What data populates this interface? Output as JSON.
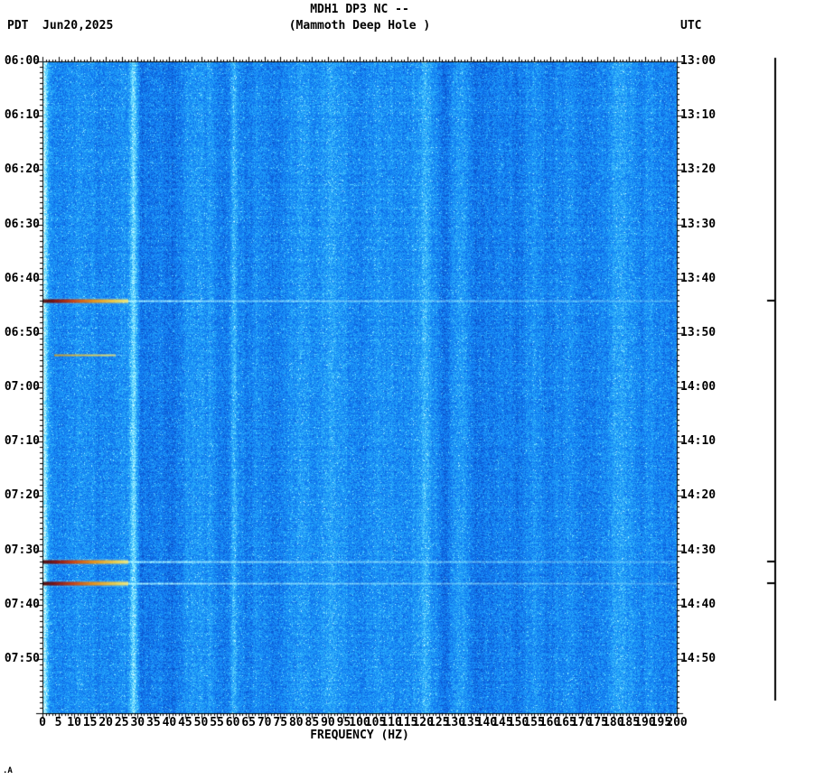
{
  "header": {
    "tz_left": "PDT",
    "date": "Jun20,2025",
    "title_line1": "MDH1 DP3 NC --",
    "title_line2": "(Mammoth Deep Hole )",
    "tz_right": "UTC"
  },
  "axes": {
    "xlabel": "FREQUENCY (HZ)",
    "left_time_labels": [
      "06:00",
      "06:10",
      "06:20",
      "06:30",
      "06:40",
      "06:50",
      "07:00",
      "07:10",
      "07:20",
      "07:30",
      "07:40",
      "07:50"
    ],
    "right_time_labels": [
      "13:00",
      "13:10",
      "13:20",
      "13:30",
      "13:40",
      "13:50",
      "14:00",
      "14:10",
      "14:20",
      "14:30",
      "14:40",
      "14:50"
    ],
    "freq_labels": [
      "0",
      "5",
      "10",
      "15",
      "20",
      "25",
      "30",
      "35",
      "40",
      "45",
      "50",
      "55",
      "60",
      "65",
      "70",
      "75",
      "80",
      "85",
      "90",
      "95",
      "100",
      "105",
      "110",
      "115",
      "120",
      "125",
      "130",
      "135",
      "140",
      "145",
      "150",
      "155",
      "160",
      "165",
      "170",
      "175",
      "180",
      "185",
      "190",
      "195",
      "200"
    ]
  },
  "footer_mark": ".A",
  "chart_data": {
    "type": "heatmap",
    "title": "MDH1 DP3 NC -- (Mammoth Deep Hole )",
    "station": "MDH1 DP3 NC",
    "station_name": "Mammoth Deep Hole",
    "date": "Jun20,2025",
    "xlabel": "FREQUENCY (HZ)",
    "x_range_hz": [
      0,
      200
    ],
    "x_tick_step_hz": 5,
    "y_axis_left": {
      "timezone": "PDT",
      "start": "06:00",
      "end": "08:00",
      "tick_step_min": 10
    },
    "y_axis_right": {
      "timezone": "UTC",
      "start": "13:00",
      "end": "15:00",
      "tick_step_min": 10
    },
    "background_character": "broadband blue speckle noise",
    "persistent_spectral_lines_hz": [
      28.6,
      60.3,
      120.3,
      179.8
    ],
    "events": [
      {
        "time_pdt": "06:44",
        "time_utc": "13:44",
        "type": "strong",
        "low_freq_peak_hz": [
          0,
          27
        ],
        "streak_extent_hz": [
          0,
          200
        ]
      },
      {
        "time_pdt": "06:54",
        "time_utc": "13:54",
        "type": "weak",
        "low_freq_peak_hz": [
          4,
          23
        ],
        "streak_extent_hz": [
          4,
          32
        ]
      },
      {
        "time_pdt": "07:32",
        "time_utc": "14:32",
        "type": "strong",
        "low_freq_peak_hz": [
          0,
          27
        ],
        "streak_extent_hz": [
          0,
          200
        ]
      },
      {
        "time_pdt": "07:36",
        "time_utc": "14:36",
        "type": "strong",
        "low_freq_peak_hz": [
          0,
          27
        ],
        "streak_extent_hz": [
          0,
          200
        ]
      }
    ],
    "marker_ticks_right_bar_pdt": [
      "06:44",
      "07:32",
      "07:36"
    ],
    "colormap": {
      "noise_low": "#0838b0",
      "noise_mid": "#24a8fa",
      "noise_high": "#e1ffff",
      "event_dark": "#460000",
      "event_orange": "#f89600",
      "event_yellow": "#faf082",
      "event_streak_cyan": "#aef8ff"
    }
  }
}
